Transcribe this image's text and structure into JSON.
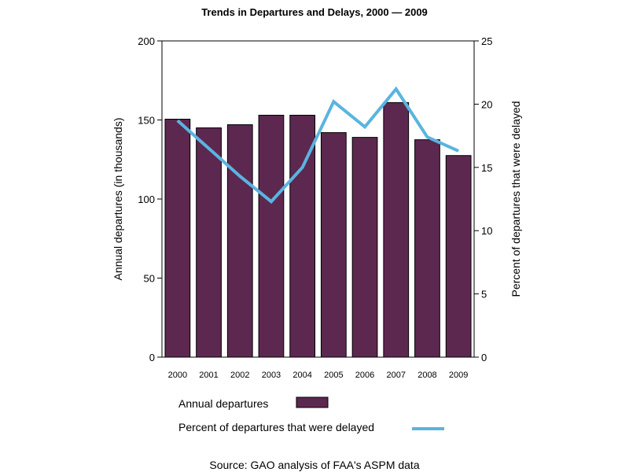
{
  "chart_data": {
    "type": "bar",
    "title": "Trends in Departures and Delays, 2000 — 2009",
    "categories": [
      "2000",
      "2001",
      "2002",
      "2003",
      "2004",
      "2005",
      "2006",
      "2007",
      "2008",
      "2009"
    ],
    "series": [
      {
        "name": "Annual departures",
        "type": "bar",
        "axis": "left",
        "color": "#5c2850",
        "values": [
          150.5,
          145,
          147,
          153,
          153,
          142,
          139,
          161,
          137.5,
          127.5
        ]
      },
      {
        "name": "Percent of departures that were delayed",
        "type": "line",
        "axis": "right",
        "color": "#5ab4e0",
        "values": [
          18.7,
          16.5,
          14.3,
          12.3,
          15.0,
          20.2,
          18.2,
          21.2,
          17.4,
          16.3
        ]
      }
    ],
    "ylabel": "Annual departures (in thousands)",
    "y2label": "Percent of departures that were delayed",
    "ylim": [
      0,
      200
    ],
    "y2lim": [
      0,
      25
    ],
    "yticks": [
      0,
      50,
      100,
      150,
      200
    ],
    "y2ticks": [
      0,
      5,
      10,
      15,
      20,
      25
    ],
    "grid": false,
    "legend_position": "bottom",
    "source": "Source: GAO analysis of FAA's ASPM data"
  }
}
